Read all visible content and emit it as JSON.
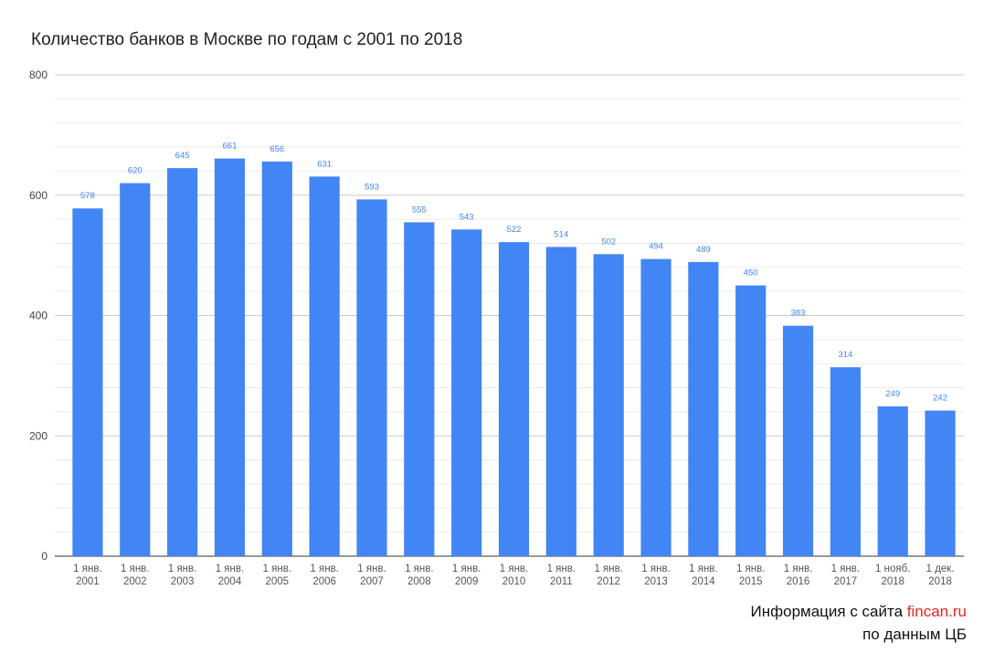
{
  "chart_data": {
    "type": "bar",
    "title": "Количество банков в Москве по годам с 2001 по 2018",
    "xlabel": "",
    "ylabel": "",
    "ylim": [
      0,
      800
    ],
    "yticks": [
      "0",
      "200",
      "400",
      "600",
      "800"
    ],
    "grid": true,
    "bar_color": "#4285f4",
    "categories": [
      [
        "1 янв.",
        "2001"
      ],
      [
        "1 янв.",
        "2002"
      ],
      [
        "1 янв.",
        "2003"
      ],
      [
        "1 янв.",
        "2004"
      ],
      [
        "1 янв.",
        "2005"
      ],
      [
        "1 янв.",
        "2006"
      ],
      [
        "1 янв.",
        "2007"
      ],
      [
        "1 янв.",
        "2008"
      ],
      [
        "1 янв.",
        "2009"
      ],
      [
        "1 янв.",
        "2010"
      ],
      [
        "1 янв.",
        "2011"
      ],
      [
        "1 янв.",
        "2012"
      ],
      [
        "1 янв.",
        "2013"
      ],
      [
        "1 янв.",
        "2014"
      ],
      [
        "1 янв.",
        "2015"
      ],
      [
        "1 янв.",
        "2016"
      ],
      [
        "1 янв.",
        "2017"
      ],
      [
        "1 нояб.",
        "2018"
      ],
      [
        "1 дек.",
        "2018"
      ]
    ],
    "values": [
      578,
      620,
      645,
      661,
      656,
      631,
      593,
      555,
      543,
      522,
      514,
      502,
      494,
      489,
      450,
      383,
      314,
      249,
      242
    ]
  },
  "credit": {
    "prefix": "Информация с сайта ",
    "site": "fincan.ru",
    "source": "по данным ЦБ"
  }
}
